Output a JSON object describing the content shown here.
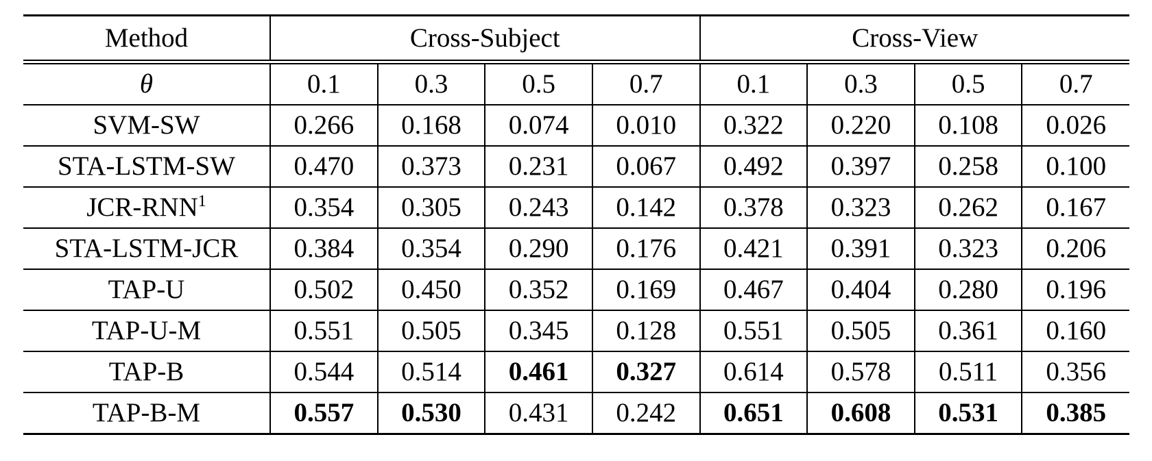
{
  "table": {
    "header": {
      "method": "Method",
      "groups": [
        "Cross-Subject",
        "Cross-View"
      ]
    },
    "theta_label": "θ",
    "thresholds": [
      "0.1",
      "0.3",
      "0.5",
      "0.7",
      "0.1",
      "0.3",
      "0.5",
      "0.7"
    ],
    "rows": [
      {
        "method": "SVM-SW",
        "sup": "",
        "values": [
          "0.266",
          "0.168",
          "0.074",
          "0.010",
          "0.322",
          "0.220",
          "0.108",
          "0.026"
        ],
        "bold": [
          false,
          false,
          false,
          false,
          false,
          false,
          false,
          false
        ]
      },
      {
        "method": "STA-LSTM-SW",
        "sup": "",
        "values": [
          "0.470",
          "0.373",
          "0.231",
          "0.067",
          "0.492",
          "0.397",
          "0.258",
          "0.100"
        ],
        "bold": [
          false,
          false,
          false,
          false,
          false,
          false,
          false,
          false
        ]
      },
      {
        "method": "JCR-RNN",
        "sup": "1",
        "values": [
          "0.354",
          "0.305",
          "0.243",
          "0.142",
          "0.378",
          "0.323",
          "0.262",
          "0.167"
        ],
        "bold": [
          false,
          false,
          false,
          false,
          false,
          false,
          false,
          false
        ]
      },
      {
        "method": "STA-LSTM-JCR",
        "sup": "",
        "values": [
          "0.384",
          "0.354",
          "0.290",
          "0.176",
          "0.421",
          "0.391",
          "0.323",
          "0.206"
        ],
        "bold": [
          false,
          false,
          false,
          false,
          false,
          false,
          false,
          false
        ]
      },
      {
        "method": "TAP-U",
        "sup": "",
        "values": [
          "0.502",
          "0.450",
          "0.352",
          "0.169",
          "0.467",
          "0.404",
          "0.280",
          "0.196"
        ],
        "bold": [
          false,
          false,
          false,
          false,
          false,
          false,
          false,
          false
        ]
      },
      {
        "method": "TAP-U-M",
        "sup": "",
        "values": [
          "0.551",
          "0.505",
          "0.345",
          "0.128",
          "0.551",
          "0.505",
          "0.361",
          "0.160"
        ],
        "bold": [
          false,
          false,
          false,
          false,
          false,
          false,
          false,
          false
        ]
      },
      {
        "method": "TAP-B",
        "sup": "",
        "values": [
          "0.544",
          "0.514",
          "0.461",
          "0.327",
          "0.614",
          "0.578",
          "0.511",
          "0.356"
        ],
        "bold": [
          false,
          false,
          true,
          true,
          false,
          false,
          false,
          false
        ]
      },
      {
        "method": "TAP-B-M",
        "sup": "",
        "values": [
          "0.557",
          "0.530",
          "0.431",
          "0.242",
          "0.651",
          "0.608",
          "0.531",
          "0.385"
        ],
        "bold": [
          true,
          true,
          false,
          false,
          true,
          true,
          true,
          true
        ]
      }
    ]
  }
}
